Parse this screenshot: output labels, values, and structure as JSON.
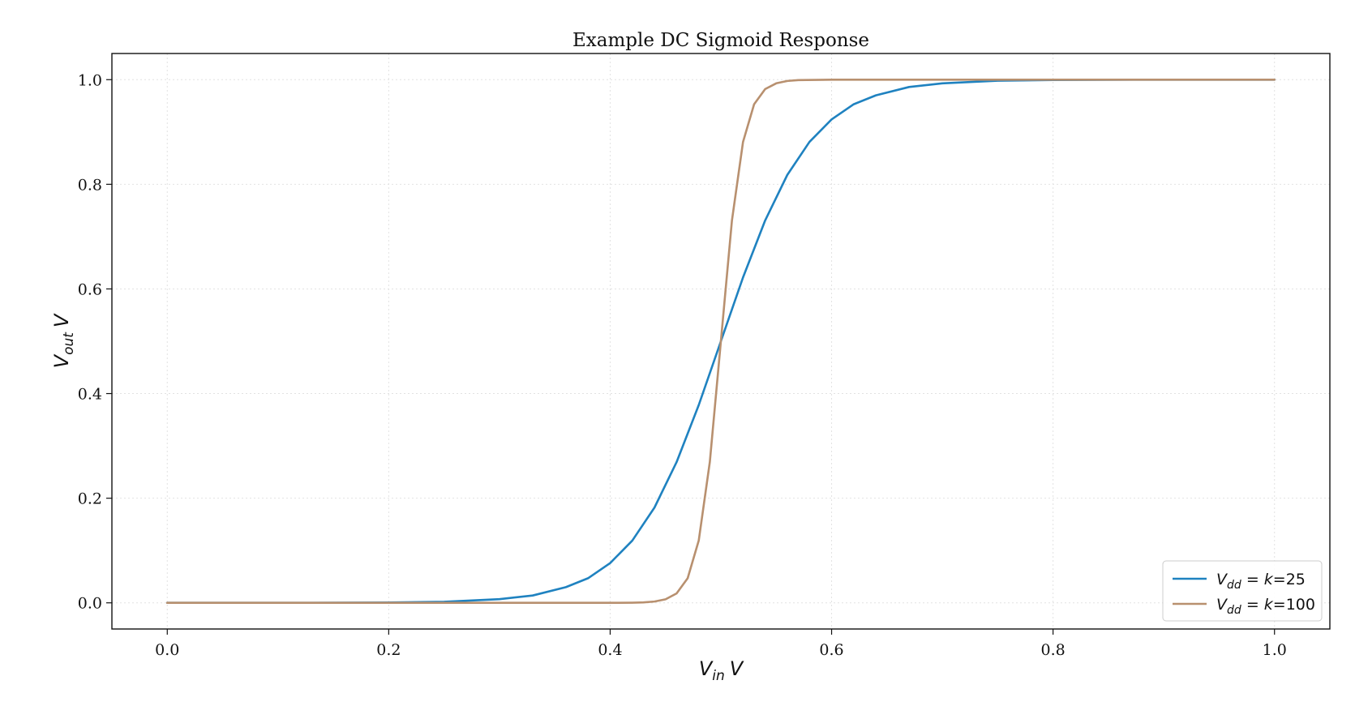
{
  "chart_data": {
    "type": "line",
    "title": "Example DC Sigmoid Response",
    "xlabel": {
      "main": "V",
      "sub": "in",
      "unit": "V"
    },
    "ylabel": {
      "main": "V",
      "sub": "out",
      "unit": "V"
    },
    "xlim": [
      -0.05,
      1.05
    ],
    "ylim": [
      -0.05,
      1.05
    ],
    "xticks": [
      0.0,
      0.2,
      0.4,
      0.6,
      0.8,
      1.0
    ],
    "yticks": [
      0.0,
      0.2,
      0.4,
      0.6,
      0.8,
      1.0
    ],
    "xtick_labels": [
      "0.0",
      "0.2",
      "0.4",
      "0.6",
      "0.8",
      "1.0"
    ],
    "ytick_labels": [
      "0.0",
      "0.2",
      "0.4",
      "0.6",
      "0.8",
      "1.0"
    ],
    "grid": true,
    "legend_position": "bottom-right",
    "series": [
      {
        "legend": {
          "main": "V",
          "sub": "dd",
          "eq": " = ",
          "k": "k",
          "value": "=25"
        },
        "color": "#1f82c0",
        "x": [
          0.0,
          0.1,
          0.2,
          0.25,
          0.3,
          0.33,
          0.36,
          0.38,
          0.4,
          0.42,
          0.44,
          0.46,
          0.48,
          0.5,
          0.52,
          0.54,
          0.56,
          0.58,
          0.6,
          0.62,
          0.64,
          0.67,
          0.7,
          0.75,
          0.8,
          0.9,
          1.0
        ],
        "y": [
          0.0,
          0.0,
          0.0006,
          0.002,
          0.007,
          0.014,
          0.03,
          0.047,
          0.076,
          0.119,
          0.182,
          0.269,
          0.378,
          0.5,
          0.622,
          0.731,
          0.818,
          0.881,
          0.924,
          0.953,
          0.97,
          0.986,
          0.993,
          0.998,
          0.9994,
          1.0,
          1.0
        ]
      },
      {
        "legend": {
          "main": "V",
          "sub": "dd",
          "eq": " = ",
          "k": "k",
          "value": "=100"
        },
        "color": "#b8906f",
        "x": [
          0.0,
          0.3,
          0.4,
          0.42,
          0.43,
          0.44,
          0.45,
          0.46,
          0.47,
          0.48,
          0.49,
          0.5,
          0.51,
          0.52,
          0.53,
          0.54,
          0.55,
          0.56,
          0.57,
          0.6,
          0.7,
          1.0
        ],
        "y": [
          0.0,
          0.0,
          0.0,
          0.0003,
          0.0009,
          0.0025,
          0.0067,
          0.018,
          0.047,
          0.119,
          0.269,
          0.5,
          0.731,
          0.881,
          0.953,
          0.982,
          0.993,
          0.9975,
          0.9991,
          1.0,
          1.0,
          1.0
        ]
      }
    ]
  }
}
